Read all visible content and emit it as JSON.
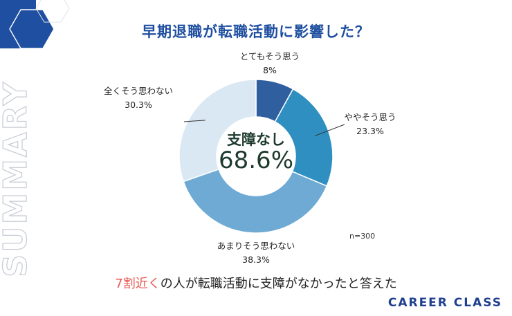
{
  "title": "早期退職が転職活動に影響した？",
  "side_label": "SUMMARY",
  "center": {
    "label": "支障なし",
    "value": "68.6%"
  },
  "note": "n=300",
  "summary": {
    "highlight": "7割近く",
    "rest": "の人が転職活動に支障がなかったと答えた"
  },
  "brand": "CAREER CLASS",
  "colors": {
    "title": "#1f4fa0",
    "highlight": "#e8574f",
    "brand": "#1f3f8f"
  },
  "chart_data": {
    "type": "pie",
    "style": "donut",
    "categories": [
      "とてもそう思う",
      "ややそう思う",
      "あまりそう思わない",
      "全くそう思わない"
    ],
    "values": [
      8,
      23.3,
      38.3,
      30.3
    ],
    "value_labels": [
      "8%",
      "23.3%",
      "38.3%",
      "30.3%"
    ],
    "colors": [
      "#2f5f9e",
      "#2f8fc1",
      "#6eaad3",
      "#d9e8f3"
    ],
    "start": "12 o'clock, clockwise"
  }
}
